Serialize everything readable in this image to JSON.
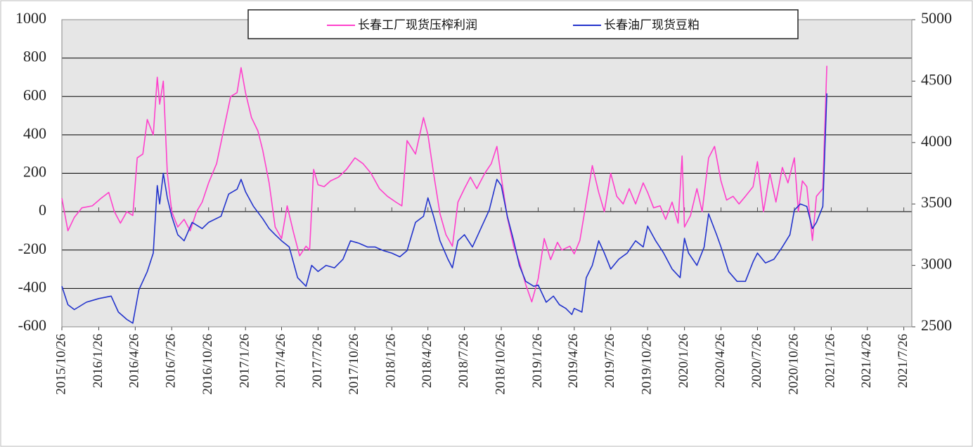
{
  "chart_data": {
    "type": "line",
    "xlim": [
      "2015/10/26",
      "2021/8/15"
    ],
    "xticks": [
      "2015/10/26",
      "2016/1/26",
      "2016/4/26",
      "2016/7/26",
      "2016/10/26",
      "2017/1/26",
      "2017/4/26",
      "2017/7/26",
      "2017/10/26",
      "2018/1/26",
      "2018/4/26",
      "2018/7/26",
      "2018/10/26",
      "2019/1/26",
      "2019/4/26",
      "2019/7/26",
      "2019/10/26",
      "2020/1/26",
      "2020/4/26",
      "2020/7/26",
      "2020/10/26",
      "2021/1/26",
      "2021/4/26",
      "2021/7/26"
    ],
    "ylim": [
      -600,
      1000
    ],
    "yticks": [
      -600,
      -400,
      -200,
      0,
      200,
      400,
      600,
      800,
      1000
    ],
    "y2lim": [
      2500,
      5000
    ],
    "y2ticks": [
      2500,
      3000,
      3500,
      4000,
      4500,
      5000
    ],
    "grid": true,
    "plot_background": "#e6e6e6",
    "negative_tick_color": "#d03020",
    "legend": "top",
    "series": [
      {
        "name": "长春工厂现货压榨利润",
        "color": "#ff40cc",
        "axis": "y",
        "x": [
          "2015/10/26",
          "2015/11/10",
          "2015/11/26",
          "2015/12/15",
          "2016/1/10",
          "2016/2/1",
          "2016/2/20",
          "2016/3/5",
          "2016/3/20",
          "2016/4/5",
          "2016/4/20",
          "2016/5/1",
          "2016/5/15",
          "2016/5/26",
          "2016/6/10",
          "2016/6/20",
          "2016/6/26",
          "2016/7/5",
          "2016/7/15",
          "2016/7/26",
          "2016/8/10",
          "2016/8/26",
          "2016/9/10",
          "2016/9/26",
          "2016/10/10",
          "2016/10/26",
          "2016/11/15",
          "2016/12/5",
          "2016/12/20",
          "2017/1/5",
          "2017/1/15",
          "2017/1/26",
          "2017/2/10",
          "2017/2/26",
          "2017/3/10",
          "2017/3/26",
          "2017/4/10",
          "2017/4/26",
          "2017/5/10",
          "2017/5/26",
          "2017/6/10",
          "2017/6/26",
          "2017/7/5",
          "2017/7/15",
          "2017/7/26",
          "2017/8/10",
          "2017/8/26",
          "2017/9/15",
          "2017/10/5",
          "2017/10/26",
          "2017/11/15",
          "2017/12/5",
          "2017/12/26",
          "2018/1/15",
          "2018/2/5",
          "2018/2/20",
          "2018/3/5",
          "2018/3/26",
          "2018/4/15",
          "2018/4/26",
          "2018/5/10",
          "2018/5/26",
          "2018/6/10",
          "2018/6/26",
          "2018/7/10",
          "2018/7/26",
          "2018/8/10",
          "2018/8/26",
          "2018/9/15",
          "2018/10/1",
          "2018/10/15",
          "2018/10/26",
          "2018/11/10",
          "2018/11/26",
          "2018/12/10",
          "2018/12/26",
          "2019/1/10",
          "2019/1/26",
          "2019/2/10",
          "2019/2/26",
          "2019/3/15",
          "2019/3/26",
          "2019/4/15",
          "2019/4/26",
          "2019/5/10",
          "2019/5/26",
          "2019/6/10",
          "2019/6/26",
          "2019/7/10",
          "2019/7/26",
          "2019/8/10",
          "2019/8/26",
          "2019/9/10",
          "2019/9/26",
          "2019/10/15",
          "2019/10/26",
          "2019/11/10",
          "2019/11/26",
          "2019/12/10",
          "2019/12/26",
          "2020/1/10",
          "2020/1/20",
          "2020/1/26",
          "2020/2/10",
          "2020/2/26",
          "2020/3/10",
          "2020/3/26",
          "2020/4/10",
          "2020/4/26",
          "2020/5/10",
          "2020/5/26",
          "2020/6/10",
          "2020/6/26",
          "2020/7/15",
          "2020/7/26",
          "2020/8/10",
          "2020/8/26",
          "2020/9/10",
          "2020/9/26",
          "2020/10/10",
          "2020/10/26",
          "2020/11/5",
          "2020/11/15",
          "2020/11/26",
          "2020/12/10",
          "2020/12/20",
          "2021/1/5",
          "2021/1/15"
        ],
        "values": [
          70,
          -100,
          -30,
          20,
          30,
          70,
          100,
          0,
          -60,
          0,
          -20,
          280,
          300,
          480,
          400,
          700,
          560,
          680,
          200,
          0,
          -80,
          -40,
          -100,
          0,
          50,
          150,
          250,
          450,
          600,
          620,
          750,
          620,
          490,
          420,
          320,
          150,
          -80,
          -140,
          30,
          -110,
          -230,
          -180,
          -200,
          220,
          140,
          130,
          160,
          180,
          220,
          280,
          250,
          200,
          120,
          80,
          50,
          30,
          370,
          300,
          490,
          400,
          200,
          -10,
          -120,
          -180,
          50,
          120,
          180,
          120,
          200,
          250,
          340,
          180,
          -30,
          -180,
          -260,
          -380,
          -470,
          -350,
          -140,
          -250,
          -160,
          -200,
          -180,
          -220,
          -150,
          50,
          240,
          100,
          0,
          200,
          80,
          40,
          120,
          40,
          150,
          100,
          20,
          30,
          -40,
          50,
          -60,
          290,
          -80,
          -20,
          120,
          0,
          280,
          340,
          160,
          60,
          80,
          40,
          80,
          130,
          260,
          0,
          200,
          50,
          230,
          150,
          280,
          0,
          160,
          130,
          -150,
          80,
          120,
          760
        ]
      },
      {
        "name": "长春油厂现货豆粕",
        "color": "#2233cc",
        "axis": "y2",
        "x": [
          "2015/10/26",
          "2015/11/10",
          "2015/11/26",
          "2015/12/26",
          "2016/1/26",
          "2016/2/26",
          "2016/3/15",
          "2016/4/5",
          "2016/4/20",
          "2016/5/5",
          "2016/5/26",
          "2016/6/10",
          "2016/6/20",
          "2016/6/26",
          "2016/7/5",
          "2016/7/15",
          "2016/7/26",
          "2016/8/10",
          "2016/8/26",
          "2016/9/15",
          "2016/10/10",
          "2016/10/26",
          "2016/11/26",
          "2016/12/15",
          "2017/1/5",
          "2017/1/15",
          "2017/1/26",
          "2017/2/15",
          "2017/3/10",
          "2017/3/26",
          "2017/4/10",
          "2017/4/26",
          "2017/5/15",
          "2017/6/5",
          "2017/6/26",
          "2017/7/10",
          "2017/7/26",
          "2017/8/15",
          "2017/9/5",
          "2017/9/26",
          "2017/10/15",
          "2017/11/5",
          "2017/11/26",
          "2017/12/15",
          "2018/1/5",
          "2018/1/26",
          "2018/2/15",
          "2018/3/5",
          "2018/3/26",
          "2018/4/15",
          "2018/4/26",
          "2018/5/10",
          "2018/5/26",
          "2018/6/15",
          "2018/6/26",
          "2018/7/10",
          "2018/7/26",
          "2018/8/15",
          "2018/9/5",
          "2018/9/26",
          "2018/10/15",
          "2018/10/26",
          "2018/11/10",
          "2018/11/26",
          "2018/12/10",
          "2018/12/26",
          "2019/1/15",
          "2019/1/26",
          "2019/2/15",
          "2019/3/5",
          "2019/3/20",
          "2019/4/5",
          "2019/4/20",
          "2019/4/26",
          "2019/5/15",
          "2019/5/26",
          "2019/6/10",
          "2019/6/26",
          "2019/7/10",
          "2019/7/26",
          "2019/8/15",
          "2019/9/5",
          "2019/9/26",
          "2019/10/15",
          "2019/10/26",
          "2019/11/15",
          "2019/12/5",
          "2019/12/26",
          "2020/1/15",
          "2020/1/26",
          "2020/2/5",
          "2020/2/26",
          "2020/3/15",
          "2020/3/26",
          "2020/4/15",
          "2020/4/26",
          "2020/5/15",
          "2020/6/5",
          "2020/6/26",
          "2020/7/15",
          "2020/7/26",
          "2020/8/15",
          "2020/9/5",
          "2020/9/26",
          "2020/10/15",
          "2020/10/26",
          "2020/11/10",
          "2020/11/26",
          "2020/12/10",
          "2020/12/20",
          "2021/1/5",
          "2021/1/15"
        ],
        "values": [
          2830,
          2680,
          2640,
          2700,
          2730,
          2750,
          2620,
          2560,
          2530,
          2800,
          2950,
          3100,
          3650,
          3500,
          3750,
          3550,
          3400,
          3250,
          3200,
          3350,
          3300,
          3350,
          3400,
          3580,
          3620,
          3700,
          3600,
          3480,
          3380,
          3300,
          3250,
          3200,
          3150,
          2900,
          2830,
          3000,
          2950,
          3000,
          2980,
          3050,
          3200,
          3180,
          3150,
          3150,
          3120,
          3100,
          3070,
          3120,
          3350,
          3400,
          3550,
          3400,
          3200,
          3050,
          2980,
          3200,
          3250,
          3150,
          3300,
          3450,
          3700,
          3650,
          3400,
          3200,
          3000,
          2870,
          2830,
          2840,
          2700,
          2750,
          2680,
          2650,
          2600,
          2650,
          2620,
          2900,
          3000,
          3200,
          3100,
          2970,
          3050,
          3100,
          3200,
          3150,
          3320,
          3200,
          3100,
          2970,
          2900,
          3220,
          3100,
          3000,
          3150,
          3420,
          3250,
          3150,
          2950,
          2870,
          2870,
          3030,
          3100,
          3020,
          3050,
          3150,
          3250,
          3450,
          3500,
          3480,
          3300,
          3350,
          3480,
          4400
        ]
      }
    ]
  }
}
